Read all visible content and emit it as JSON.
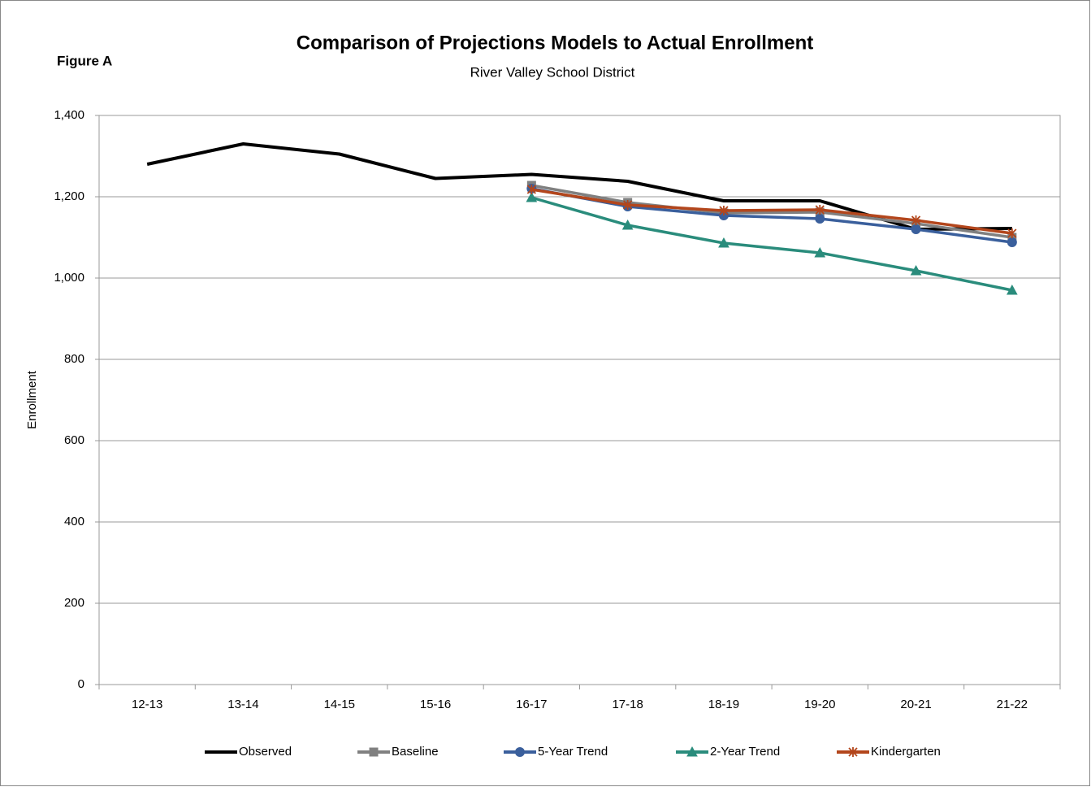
{
  "chart_data": {
    "type": "line",
    "title": "Comparison of Projections Models to Actual Enrollment",
    "subtitle": "River Valley School District",
    "annotation": "Figure A",
    "ylabel": "Enrollment",
    "categories": [
      "12-13",
      "13-14",
      "14-15",
      "15-16",
      "16-17",
      "17-18",
      "18-19",
      "19-20",
      "20-21",
      "21-22"
    ],
    "ylim": [
      0,
      1400
    ],
    "yticks": [
      0,
      200,
      400,
      600,
      800,
      {
        "value": 1000,
        "label": "1,000"
      },
      {
        "value": 1200,
        "label": "1,200"
      },
      {
        "value": 1400,
        "label": "1,400"
      }
    ],
    "grid": true,
    "legend": "bottom",
    "series": [
      {
        "name": "Observed",
        "color": "#000000",
        "marker": "none",
        "values": [
          1280,
          1330,
          1305,
          1245,
          1255,
          1238,
          1190,
          1190,
          1120,
          1122
        ]
      },
      {
        "name": "Baseline",
        "color": "#808080",
        "marker": "square",
        "values": [
          null,
          null,
          null,
          null,
          1228,
          1186,
          1160,
          1162,
          1134,
          1100
        ]
      },
      {
        "name": "5-Year Trend",
        "color": "#3a5f9c",
        "marker": "circle",
        "values": [
          null,
          null,
          null,
          null,
          1220,
          1176,
          1154,
          1146,
          1120,
          1088
        ]
      },
      {
        "name": "2-Year Trend",
        "color": "#2a8c7c",
        "marker": "triangle",
        "values": [
          null,
          null,
          null,
          null,
          1198,
          1130,
          1086,
          1062,
          1018,
          970
        ]
      },
      {
        "name": "Kindergarten",
        "color": "#b3461c",
        "marker": "star",
        "values": [
          null,
          null,
          null,
          null,
          1218,
          1180,
          1166,
          1168,
          1142,
          1110
        ]
      }
    ]
  }
}
